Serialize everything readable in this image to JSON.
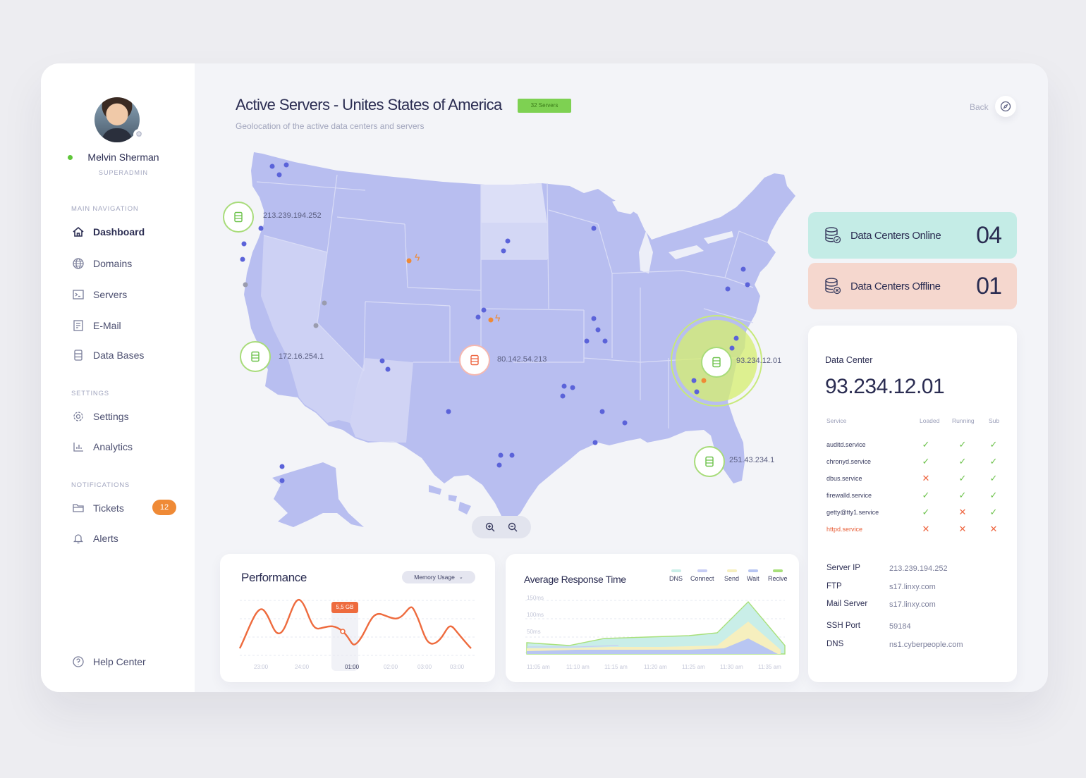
{
  "user": {
    "name": "Melvin Sherman",
    "role": "SUPERADMIN"
  },
  "nav": {
    "main_section": "MAIN NAVIGATION",
    "main_items": [
      {
        "label": "Dashboard",
        "icon": "home-icon",
        "active": true
      },
      {
        "label": "Domains",
        "icon": "globe-icon"
      },
      {
        "label": "Servers",
        "icon": "terminal-icon"
      },
      {
        "label": "E-Mail",
        "icon": "mail-icon"
      },
      {
        "label": "Data Bases",
        "icon": "database-icon"
      }
    ],
    "settings_section": "SETTINGS",
    "settings_items": [
      {
        "label": "Settings",
        "icon": "gear-icon"
      },
      {
        "label": "Analytics",
        "icon": "chart-icon"
      }
    ],
    "notifications_section": "NOTIFICATIONS",
    "notification_items": [
      {
        "label": "Tickets",
        "icon": "folder-icon",
        "badge": "12"
      },
      {
        "label": "Alerts",
        "icon": "bell-icon"
      }
    ],
    "help": "Help Center"
  },
  "header": {
    "title": "Active Servers - Unites States of America",
    "badge": "32 Servers",
    "subtitle": "Geolocation of the active data centers and servers",
    "back": "Back"
  },
  "map": {
    "servers": [
      {
        "ip": "213.239.194.252",
        "status": "online"
      },
      {
        "ip": "172.16.254.1",
        "status": "online"
      },
      {
        "ip": "80.142.54.213",
        "status": "offline"
      },
      {
        "ip": "93.234.12.01",
        "status": "selected"
      },
      {
        "ip": "251.43.234.1",
        "status": "online"
      }
    ]
  },
  "stats": {
    "online_label": "Data Centers Online",
    "online_value": "04",
    "offline_label": "Data Centers Offline",
    "offline_value": "01"
  },
  "data_center": {
    "label": "Data Center",
    "ip": "93.234.12.01",
    "headers": {
      "service": "Service",
      "loaded": "Loaded",
      "running": "Running",
      "sub": "Sub"
    },
    "services": [
      {
        "name": "auditd.service",
        "loaded": true,
        "running": true,
        "sub": true
      },
      {
        "name": "chronyd.service",
        "loaded": true,
        "running": true,
        "sub": true
      },
      {
        "name": "dbus.service",
        "loaded": false,
        "running": true,
        "sub": true
      },
      {
        "name": "firewalld.service",
        "loaded": true,
        "running": true,
        "sub": true
      },
      {
        "name": "getty@tty1.service",
        "loaded": true,
        "running": false,
        "sub": true
      },
      {
        "name": "httpd.service",
        "loaded": false,
        "running": false,
        "sub": false
      }
    ],
    "info": [
      {
        "label": "Server IP",
        "value": "213.239.194.252"
      },
      {
        "label": "FTP",
        "value": "s17.linxy.com"
      },
      {
        "label": "Mail Server",
        "value": "s17.linxy.com"
      },
      {
        "label": "SSH Port",
        "value": "59184"
      },
      {
        "label": "DNS",
        "value": "ns1.cyberpeople.com"
      }
    ]
  },
  "performance": {
    "title": "Performance",
    "select": "Memory Usage",
    "tooltip": "5,5 GB",
    "x_labels": [
      "23:00",
      "24:00",
      "01:00",
      "02:00",
      "03:00",
      "03:00"
    ],
    "active_label": "01:00"
  },
  "response": {
    "title": "Average Response Time",
    "legend": [
      {
        "name": "DNS",
        "color": "#c9eee8"
      },
      {
        "name": "Connect",
        "color": "#c7cdf4"
      },
      {
        "name": "Send",
        "color": "#f6efbe"
      },
      {
        "name": "Wait",
        "color": "#b8c6f2"
      },
      {
        "name": "Recive",
        "color": "#a8e07a"
      }
    ],
    "y_labels": [
      "150ms",
      "100ms",
      "50ms"
    ],
    "x_labels": [
      "11:05 am",
      "11:10 am",
      "11:15 am",
      "11:20 am",
      "11:25 am",
      "11:30 am",
      "11:35 am"
    ]
  },
  "colors": {
    "accent": "#2b2d52",
    "online": "#7ed152",
    "offline": "#ef8a36",
    "map": "#b8bef0"
  }
}
